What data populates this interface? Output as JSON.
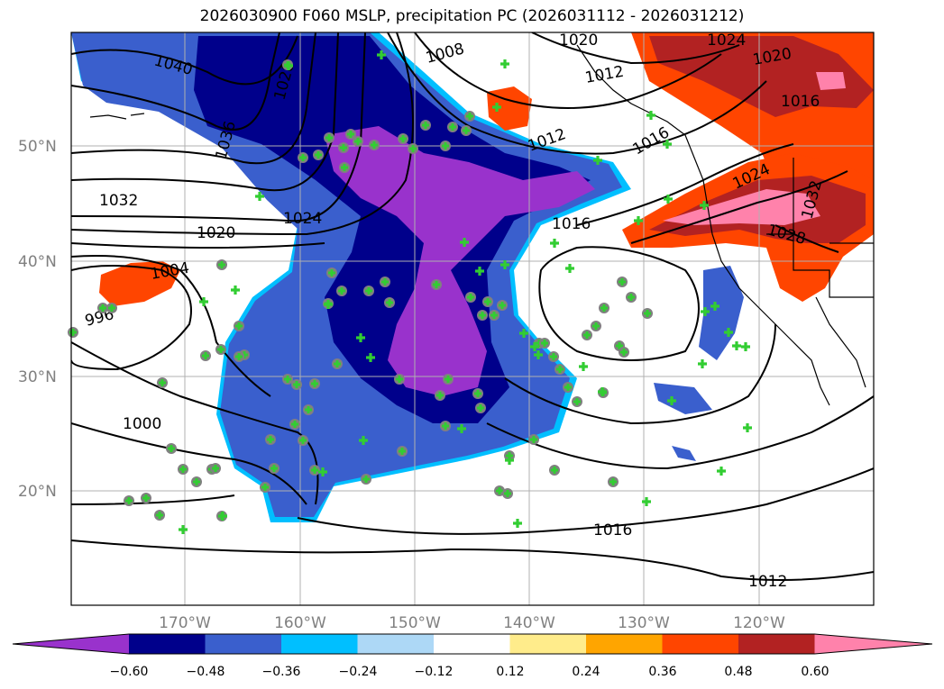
{
  "title": "2026030900 F060 MSLP, precipitation PC (2026031112 - 2026031212)",
  "map": {
    "latitude_labels": [
      "50°N",
      "40°N",
      "30°N",
      "20°N"
    ],
    "longitude_labels": [
      "170°W",
      "160°W",
      "150°W",
      "140°W",
      "130°W",
      "120°W"
    ],
    "grid": true
  },
  "isobars": {
    "labels": [
      "1040",
      "1036",
      "1032",
      "1028",
      "1024",
      "1020",
      "1020",
      "1016",
      "1016",
      "1012",
      "1012",
      "1008",
      "1004",
      "1000",
      "996",
      "1016",
      "1012",
      "1024",
      "1020",
      "1016",
      "1024",
      "1032",
      "1028"
    ]
  },
  "colorbar": {
    "ticks": [
      "−0.60",
      "−0.48",
      "−0.36",
      "−0.24",
      "−0.12",
      "0.12",
      "0.24",
      "0.36",
      "0.48",
      "0.60"
    ],
    "colors": [
      "#9932CC",
      "#00008B",
      "#3A5FCD",
      "#00BFFF",
      "#ADD8F6",
      "#FFFFFF",
      "#FFEC8B",
      "#FFA500",
      "#FF4500",
      "#B22222",
      "#FF82AB"
    ]
  },
  "colors": {
    "marker_fill": "#32CD32",
    "marker_ring": "#808080",
    "contour": "#000000"
  }
}
